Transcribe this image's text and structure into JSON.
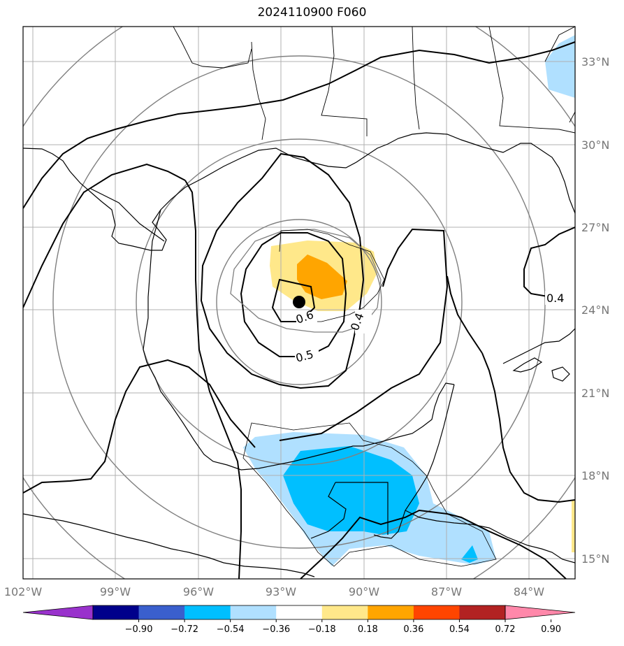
{
  "title": "2024110900 F060",
  "lon_ticks": [
    "102°W",
    "99°W",
    "96°W",
    "93°W",
    "90°W",
    "87°W",
    "84°W"
  ],
  "lat_ticks": [
    "33°N",
    "30°N",
    "27°N",
    "24°N",
    "21°N",
    "18°N",
    "15°N"
  ],
  "contour_labels": [
    "0.6",
    "0.5",
    "0.4",
    "0.4"
  ],
  "colorbar": {
    "labels": [
      "−0.90",
      "−0.72",
      "−0.54",
      "−0.36",
      "−0.18",
      "0.18",
      "0.36",
      "0.54",
      "0.72",
      "0.90"
    ],
    "colors": [
      "#9932cc",
      "#00008b",
      "#3a5fcd",
      "#00bfff",
      "#b0e0ff",
      "#ffffff",
      "#ffe88a",
      "#ffa500",
      "#ff4500",
      "#b22222",
      "#ff88aa"
    ]
  },
  "storm_center": {
    "lat": 24.3,
    "lon": -92.3
  }
}
